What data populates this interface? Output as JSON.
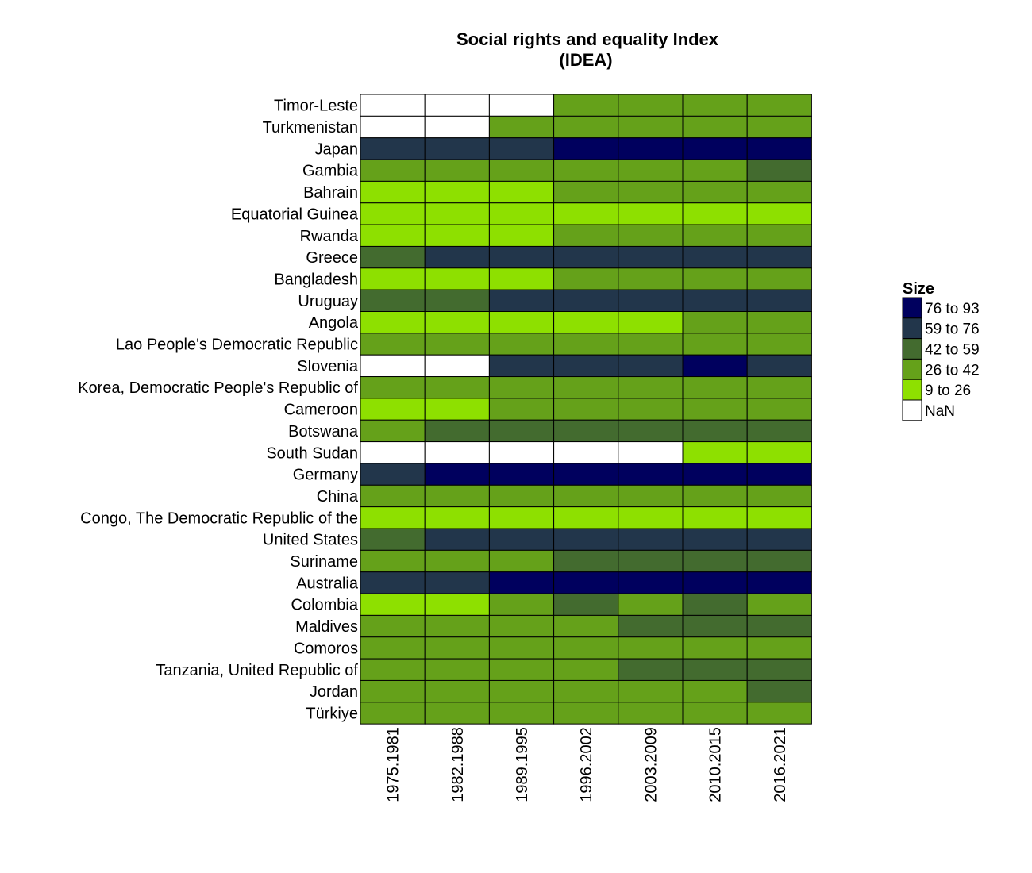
{
  "chart_data": {
    "type": "heatmap",
    "title": "Social rights and equality Index",
    "subtitle": "(IDEA)",
    "columns": [
      "1975.1981",
      "1982.1988",
      "1989.1995",
      "1996.2002",
      "2003.2009",
      "2010.2015",
      "2016.2021"
    ],
    "rows": [
      {
        "name": "Timor-Leste",
        "values": [
          "NaN",
          "NaN",
          "NaN",
          "26 to 42",
          "26 to 42",
          "26 to 42",
          "26 to 42"
        ]
      },
      {
        "name": "Turkmenistan",
        "values": [
          "NaN",
          "NaN",
          "26 to 42",
          "26 to 42",
          "26 to 42",
          "26 to 42",
          "26 to 42"
        ]
      },
      {
        "name": "Japan",
        "values": [
          "59 to 76",
          "59 to 76",
          "59 to 76",
          "76 to 93",
          "76 to 93",
          "76 to 93",
          "76 to 93"
        ]
      },
      {
        "name": "Gambia",
        "values": [
          "26 to 42",
          "26 to 42",
          "26 to 42",
          "26 to 42",
          "26 to 42",
          "26 to 42",
          "42 to 59"
        ]
      },
      {
        "name": "Bahrain",
        "values": [
          "9 to 26",
          "9 to 26",
          "9 to 26",
          "26 to 42",
          "26 to 42",
          "26 to 42",
          "26 to 42"
        ]
      },
      {
        "name": "Equatorial Guinea",
        "values": [
          "9 to 26",
          "9 to 26",
          "9 to 26",
          "9 to 26",
          "9 to 26",
          "9 to 26",
          "9 to 26"
        ]
      },
      {
        "name": "Rwanda",
        "values": [
          "9 to 26",
          "9 to 26",
          "9 to 26",
          "26 to 42",
          "26 to 42",
          "26 to 42",
          "26 to 42"
        ]
      },
      {
        "name": "Greece",
        "values": [
          "42 to 59",
          "59 to 76",
          "59 to 76",
          "59 to 76",
          "59 to 76",
          "59 to 76",
          "59 to 76"
        ]
      },
      {
        "name": "Bangladesh",
        "values": [
          "9 to 26",
          "9 to 26",
          "9 to 26",
          "26 to 42",
          "26 to 42",
          "26 to 42",
          "26 to 42"
        ]
      },
      {
        "name": "Uruguay",
        "values": [
          "42 to 59",
          "42 to 59",
          "59 to 76",
          "59 to 76",
          "59 to 76",
          "59 to 76",
          "59 to 76"
        ]
      },
      {
        "name": "Angola",
        "values": [
          "9 to 26",
          "9 to 26",
          "9 to 26",
          "9 to 26",
          "9 to 26",
          "26 to 42",
          "26 to 42"
        ]
      },
      {
        "name": "Lao People's Democratic Republic",
        "values": [
          "26 to 42",
          "26 to 42",
          "26 to 42",
          "26 to 42",
          "26 to 42",
          "26 to 42",
          "26 to 42"
        ]
      },
      {
        "name": "Slovenia",
        "values": [
          "NaN",
          "NaN",
          "59 to 76",
          "59 to 76",
          "59 to 76",
          "76 to 93",
          "59 to 76"
        ]
      },
      {
        "name": "Korea, Democratic People's Republic of",
        "values": [
          "26 to 42",
          "26 to 42",
          "26 to 42",
          "26 to 42",
          "26 to 42",
          "26 to 42",
          "26 to 42"
        ]
      },
      {
        "name": "Cameroon",
        "values": [
          "9 to 26",
          "9 to 26",
          "26 to 42",
          "26 to 42",
          "26 to 42",
          "26 to 42",
          "26 to 42"
        ]
      },
      {
        "name": "Botswana",
        "values": [
          "26 to 42",
          "42 to 59",
          "42 to 59",
          "42 to 59",
          "42 to 59",
          "42 to 59",
          "42 to 59"
        ]
      },
      {
        "name": "South Sudan",
        "values": [
          "NaN",
          "NaN",
          "NaN",
          "NaN",
          "NaN",
          "9 to 26",
          "9 to 26"
        ]
      },
      {
        "name": "Germany",
        "values": [
          "59 to 76",
          "76 to 93",
          "76 to 93",
          "76 to 93",
          "76 to 93",
          "76 to 93",
          "76 to 93"
        ]
      },
      {
        "name": "China",
        "values": [
          "26 to 42",
          "26 to 42",
          "26 to 42",
          "26 to 42",
          "26 to 42",
          "26 to 42",
          "26 to 42"
        ]
      },
      {
        "name": "Congo, The Democratic Republic of the",
        "values": [
          "9 to 26",
          "9 to 26",
          "9 to 26",
          "9 to 26",
          "9 to 26",
          "9 to 26",
          "9 to 26"
        ]
      },
      {
        "name": "United States",
        "values": [
          "42 to 59",
          "59 to 76",
          "59 to 76",
          "59 to 76",
          "59 to 76",
          "59 to 76",
          "59 to 76"
        ]
      },
      {
        "name": "Suriname",
        "values": [
          "26 to 42",
          "26 to 42",
          "26 to 42",
          "42 to 59",
          "42 to 59",
          "42 to 59",
          "42 to 59"
        ]
      },
      {
        "name": "Australia",
        "values": [
          "59 to 76",
          "59 to 76",
          "76 to 93",
          "76 to 93",
          "76 to 93",
          "76 to 93",
          "76 to 93"
        ]
      },
      {
        "name": "Colombia",
        "values": [
          "9 to 26",
          "9 to 26",
          "26 to 42",
          "42 to 59",
          "26 to 42",
          "42 to 59",
          "26 to 42"
        ]
      },
      {
        "name": "Maldives",
        "values": [
          "26 to 42",
          "26 to 42",
          "26 to 42",
          "26 to 42",
          "42 to 59",
          "42 to 59",
          "42 to 59"
        ]
      },
      {
        "name": "Comoros",
        "values": [
          "26 to 42",
          "26 to 42",
          "26 to 42",
          "26 to 42",
          "26 to 42",
          "26 to 42",
          "26 to 42"
        ]
      },
      {
        "name": "Tanzania, United Republic of",
        "values": [
          "26 to 42",
          "26 to 42",
          "26 to 42",
          "26 to 42",
          "42 to 59",
          "42 to 59",
          "42 to 59"
        ]
      },
      {
        "name": "Jordan",
        "values": [
          "26 to 42",
          "26 to 42",
          "26 to 42",
          "26 to 42",
          "26 to 42",
          "26 to 42",
          "42 to 59"
        ]
      },
      {
        "name": "Türkiye",
        "values": [
          "26 to 42",
          "26 to 42",
          "26 to 42",
          "26 to 42",
          "26 to 42",
          "26 to 42",
          "26 to 42"
        ]
      }
    ],
    "legend": {
      "title": "Size",
      "placement": "right",
      "categories": [
        {
          "label": "76 to 93",
          "color": "#00005e"
        },
        {
          "label": "59 to 76",
          "color": "#22364b"
        },
        {
          "label": "42 to 59",
          "color": "#436b2f"
        },
        {
          "label": "26 to 42",
          "color": "#65a11a"
        },
        {
          "label": "9 to 26",
          "color": "#8ee000"
        },
        {
          "label": "NaN",
          "color": "#ffffff"
        }
      ]
    },
    "grid": false
  }
}
